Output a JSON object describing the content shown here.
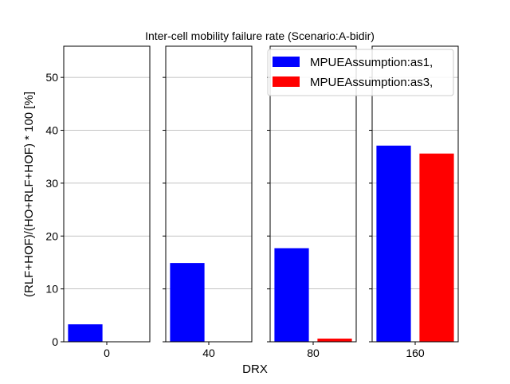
{
  "chart_data": {
    "type": "bar",
    "title": "Inter-cell mobility failure rate (Scenario:A-bidir)",
    "xlabel": "DRX",
    "ylabel": "(RLF+HOF)/(HO+RLF+HOF) * 100 [%]",
    "categories": [
      "0",
      "40",
      "80",
      "160"
    ],
    "series": [
      {
        "name": "MPUEAssumption:as1,",
        "color": "#0000ff",
        "values": [
          3.3,
          14.9,
          17.7,
          37.1
        ]
      },
      {
        "name": "MPUEAssumption:as3,",
        "color": "#ff0000",
        "values": [
          0,
          0,
          0.6,
          35.6
        ]
      }
    ],
    "ylim": [
      0,
      55.9
    ],
    "yticks": [
      0,
      10,
      20,
      30,
      40,
      50
    ],
    "grid": true,
    "legend_position": "top-right"
  }
}
